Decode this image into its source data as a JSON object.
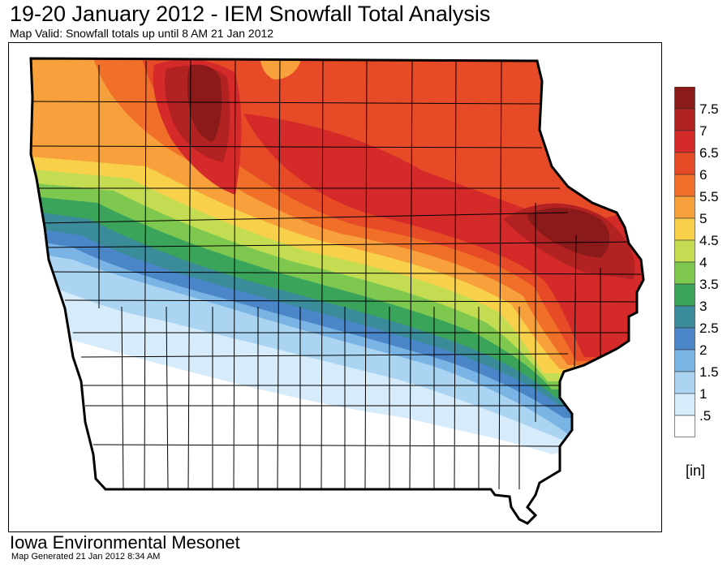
{
  "header": {
    "title": "19-20 January 2012 - IEM Snowfall Total Analysis",
    "subtitle": "Map Valid: Snowfall totals up until 8 AM 21 Jan 2012"
  },
  "legend": {
    "units": "[in]",
    "levels": [
      {
        "label": "7.5",
        "color": "#8b1a1a"
      },
      {
        "label": "7",
        "color": "#b22222"
      },
      {
        "label": "6.5",
        "color": "#d42a2a"
      },
      {
        "label": "6",
        "color": "#e64a26"
      },
      {
        "label": "5.5",
        "color": "#f0702a"
      },
      {
        "label": "5",
        "color": "#f7a03c"
      },
      {
        "label": "4.5",
        "color": "#f8d04a"
      },
      {
        "label": "4",
        "color": "#c4dc52"
      },
      {
        "label": "3.5",
        "color": "#7ec850"
      },
      {
        "label": "3",
        "color": "#3aa55a"
      },
      {
        "label": "2.5",
        "color": "#3a8c9a"
      },
      {
        "label": "2",
        "color": "#4a86c8"
      },
      {
        "label": "1.5",
        "color": "#7ab4e4"
      },
      {
        "label": "1",
        "color": "#aad4f2"
      },
      {
        "label": ".5",
        "color": "#d6ecfa"
      }
    ],
    "zero_color": "#ffffff"
  },
  "footer": {
    "org": "Iowa Environmental Mesonet",
    "generated": "Map Generated 21 Jan 2012 8:34 AM"
  }
}
